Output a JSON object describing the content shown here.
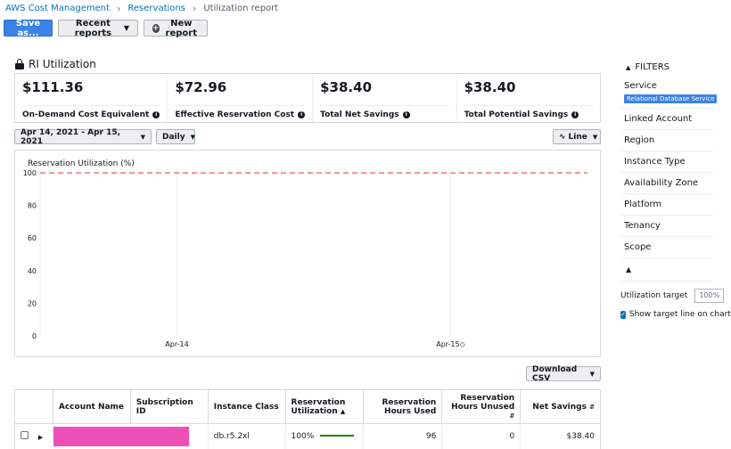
{
  "breadcrumb": {
    "items": [
      "AWS Cost Management",
      "Reservations"
    ],
    "current": "Utilization report"
  },
  "toolbar": {
    "save_label": "Save as...",
    "recent_label": "Recent reports",
    "new_label": "New report"
  },
  "section": {
    "title": "RI Utilization"
  },
  "stats": [
    {
      "value": "$111.36",
      "label": "On-Demand Cost Equivalent"
    },
    {
      "value": "$72.96",
      "label": "Effective Reservation Cost"
    },
    {
      "value": "$38.40",
      "label": "Total Net Savings"
    },
    {
      "value": "$38.40",
      "label": "Total Potential Savings"
    }
  ],
  "controls": {
    "date_range": "Apr 14, 2021 - Apr 15, 2021",
    "granularity": "Daily",
    "chart_type": "Line",
    "download_label": "Download CSV"
  },
  "chart_data": {
    "type": "line",
    "ylabel": "Reservation Utilization (%)",
    "ylim": [
      0,
      100
    ],
    "yticks": [
      0,
      20,
      40,
      60,
      80,
      100
    ],
    "x": [
      "Apr-14",
      "Apr-15◇"
    ],
    "target_line": 100,
    "grid": true,
    "colors": {
      "target": "#e55b5b",
      "grid": "#eaeded"
    }
  },
  "table": {
    "headers": [
      "Account Name",
      "Subscription ID",
      "Instance Class",
      "Reservation Utilization",
      "Reservation Hours Used",
      "Reservation Hours Unused",
      "Net Savings"
    ],
    "rows": [
      {
        "instance_class": "db.r5.2xl",
        "utilization": "100%",
        "hours_used": "96",
        "hours_unused": "0",
        "net_savings": "$38.40"
      }
    ]
  },
  "filters": {
    "title": "FILTERS",
    "service_label": "Service",
    "service_chip": "Relational Database Service",
    "items": [
      "Linked Account",
      "Region",
      "Instance Type",
      "Availability Zone",
      "Platform",
      "Tenancy",
      "Scope"
    ],
    "utilization_target_label": "Utilization target",
    "utilization_target_value": "100%",
    "show_target_label": "Show target line on chart"
  }
}
